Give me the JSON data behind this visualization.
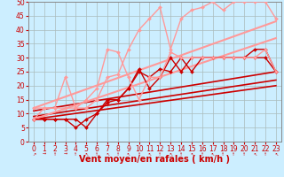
{
  "xlabel": "Vent moyen/en rafales ( km/h )",
  "bg_color": "#cceeff",
  "grid_color": "#aabbbb",
  "xlim": [
    -0.5,
    23.5
  ],
  "ylim": [
    0,
    50
  ],
  "xticks": [
    0,
    1,
    2,
    3,
    4,
    5,
    6,
    7,
    8,
    9,
    10,
    11,
    12,
    13,
    14,
    15,
    16,
    17,
    18,
    19,
    20,
    21,
    22,
    23
  ],
  "yticks": [
    0,
    5,
    10,
    15,
    20,
    25,
    30,
    35,
    40,
    45,
    50
  ],
  "series": [
    {
      "comment": "dark red jagged with markers - series 1",
      "x": [
        0,
        1,
        2,
        3,
        4,
        5,
        6,
        7,
        8,
        9,
        10,
        11,
        12,
        13,
        14,
        15,
        16,
        17,
        18,
        19,
        20,
        21,
        22,
        23
      ],
      "y": [
        8,
        8,
        8,
        8,
        5,
        8,
        10,
        15,
        15,
        19,
        26,
        19,
        23,
        30,
        25,
        30,
        30,
        30,
        30,
        30,
        30,
        33,
        33,
        25
      ],
      "color": "#cc0000",
      "lw": 1.0,
      "marker": "D",
      "ms": 2.0
    },
    {
      "comment": "dark red jagged with markers - series 2",
      "x": [
        0,
        1,
        2,
        3,
        4,
        5,
        6,
        7,
        8,
        9,
        10,
        11,
        12,
        13,
        14,
        15,
        16,
        17,
        18,
        19,
        20,
        21,
        22,
        23
      ],
      "y": [
        8,
        8,
        8,
        8,
        8,
        5,
        10,
        14,
        15,
        19,
        25,
        23,
        26,
        25,
        30,
        25,
        30,
        30,
        30,
        30,
        30,
        30,
        30,
        25
      ],
      "color": "#cc0000",
      "lw": 1.0,
      "marker": "D",
      "ms": 2.0
    },
    {
      "comment": "dark red straight line upper regression",
      "x": [
        0,
        23
      ],
      "y": [
        11,
        25
      ],
      "color": "#cc0000",
      "lw": 1.2,
      "marker": null,
      "ms": 0
    },
    {
      "comment": "dark red straight line lower regression",
      "x": [
        0,
        23
      ],
      "y": [
        8,
        20
      ],
      "color": "#cc0000",
      "lw": 1.2,
      "marker": null,
      "ms": 0
    },
    {
      "comment": "dark red straight line middle regression",
      "x": [
        0,
        23
      ],
      "y": [
        9,
        22
      ],
      "color": "#cc0000",
      "lw": 1.2,
      "marker": null,
      "ms": 0
    },
    {
      "comment": "light pink jagged with markers - high variance",
      "x": [
        0,
        1,
        2,
        3,
        4,
        5,
        6,
        7,
        8,
        9,
        10,
        11,
        12,
        13,
        14,
        15,
        16,
        17,
        18,
        19,
        20,
        21,
        22,
        23
      ],
      "y": [
        12,
        12,
        12,
        23,
        12,
        12,
        15,
        23,
        24,
        33,
        40,
        44,
        48,
        33,
        44,
        47,
        48,
        50,
        47,
        50,
        50,
        50,
        50,
        44
      ],
      "color": "#ff9999",
      "lw": 1.0,
      "marker": "D",
      "ms": 2.0
    },
    {
      "comment": "light pink jagged with markers - second",
      "x": [
        0,
        1,
        2,
        3,
        4,
        5,
        6,
        7,
        8,
        9,
        10,
        11,
        12,
        13,
        14,
        15,
        16,
        17,
        18,
        19,
        20,
        21,
        22,
        23
      ],
      "y": [
        8,
        12,
        12,
        12,
        12,
        15,
        19,
        33,
        32,
        23,
        15,
        23,
        23,
        32,
        30,
        30,
        30,
        30,
        30,
        30,
        30,
        30,
        33,
        25
      ],
      "color": "#ff9999",
      "lw": 1.0,
      "marker": "D",
      "ms": 2.0
    },
    {
      "comment": "light pink straight upper regression",
      "x": [
        0,
        23
      ],
      "y": [
        12,
        43
      ],
      "color": "#ff9999",
      "lw": 1.5,
      "marker": null,
      "ms": 0
    },
    {
      "comment": "light pink straight lower regression",
      "x": [
        0,
        23
      ],
      "y": [
        8,
        37
      ],
      "color": "#ff9999",
      "lw": 1.5,
      "marker": null,
      "ms": 0
    }
  ],
  "xlabel_color": "#cc0000",
  "xlabel_fontsize": 7.0,
  "tick_fontsize": 5.5,
  "tick_color": "#cc0000"
}
